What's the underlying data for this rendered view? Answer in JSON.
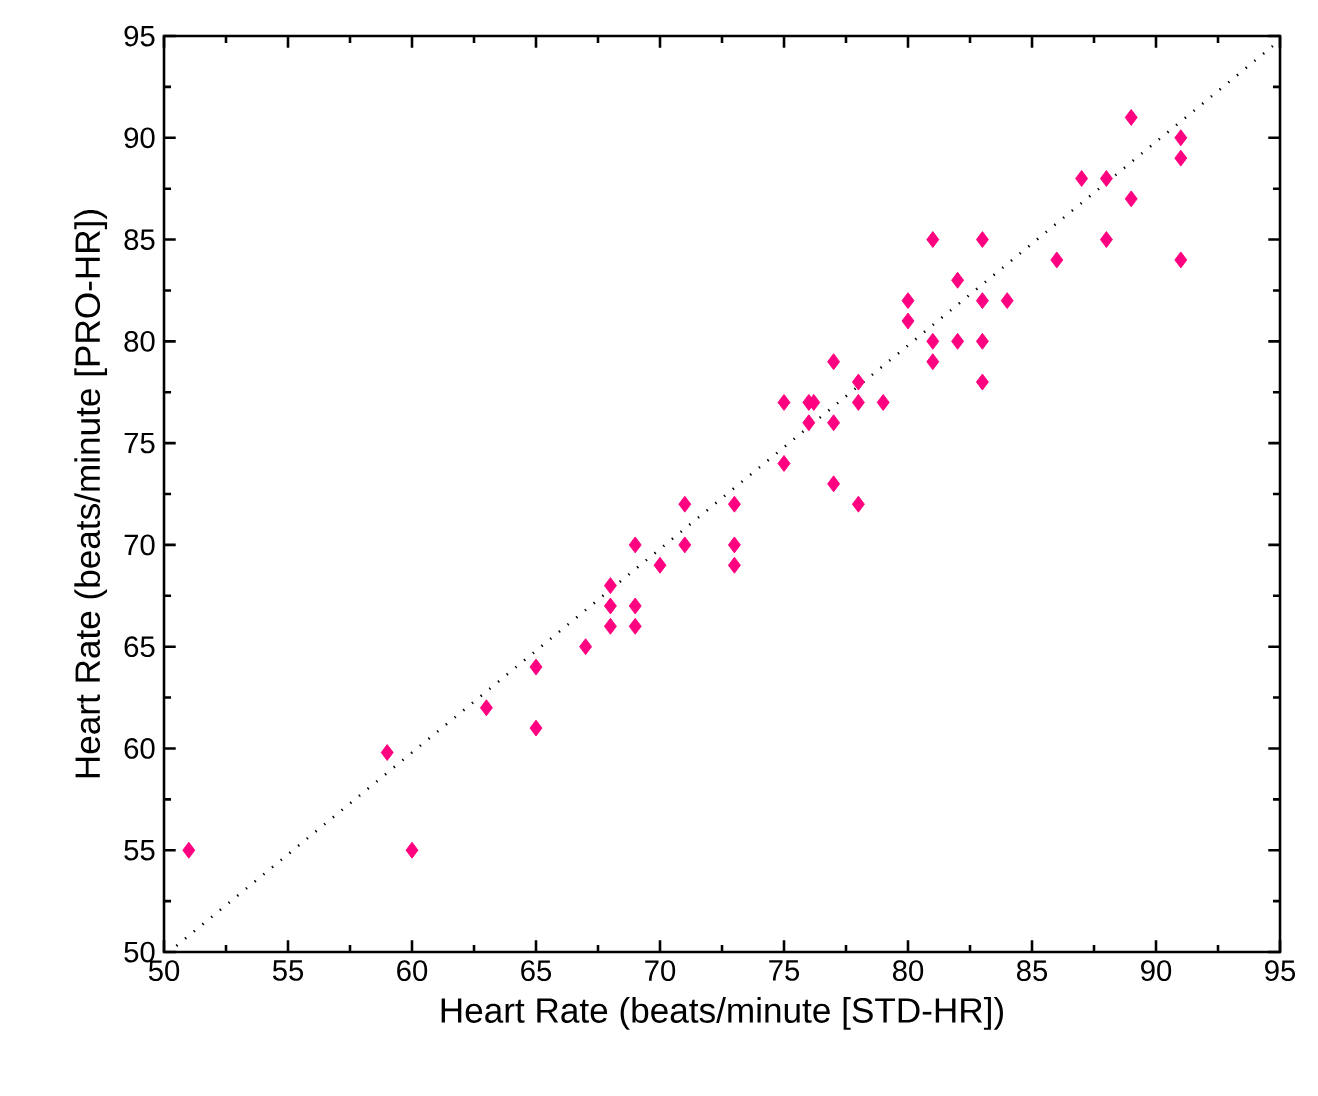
{
  "chart_data": {
    "type": "scatter",
    "xlabel": "Heart Rate (beats/minute [STD-HR])",
    "ylabel": "Heart Rate (beats/minute [PRO-HR])",
    "xlim": [
      50,
      95
    ],
    "ylim": [
      50,
      95
    ],
    "xticks": [
      50,
      55,
      60,
      65,
      70,
      75,
      80,
      85,
      90,
      95
    ],
    "yticks": [
      50,
      55,
      60,
      65,
      70,
      75,
      80,
      85,
      90,
      95
    ],
    "series": [
      {
        "color": "#ff0080",
        "marker": "diamond",
        "x": [
          51,
          59,
          60,
          63,
          65,
          65,
          67,
          68,
          68,
          68,
          69,
          69,
          69,
          70,
          71,
          71,
          73,
          73,
          73,
          75,
          75,
          76,
          76.2,
          76,
          77,
          77,
          77,
          78,
          78,
          78,
          79,
          80,
          80,
          81,
          81,
          81,
          82,
          82,
          83,
          83,
          83,
          83,
          84,
          86,
          87,
          88,
          88,
          89,
          89,
          91,
          91,
          91
        ],
        "values": [
          55,
          59.8,
          55,
          62,
          64,
          61,
          65,
          68,
          67,
          66,
          70,
          67,
          66,
          69,
          72,
          70,
          72,
          70,
          69,
          77,
          74,
          77,
          77,
          76,
          79,
          76,
          73,
          78,
          77,
          72,
          77,
          82,
          81,
          85,
          80,
          79,
          83,
          80,
          85,
          82,
          80,
          78,
          82,
          84,
          88,
          88,
          85,
          91,
          87,
          90,
          89,
          84
        ]
      },
      {
        "type": "line",
        "color": "#000000",
        "line_style": "dotted",
        "marker": "none",
        "x": [
          50.5,
          95
        ],
        "values": [
          50.3,
          94.8
        ]
      }
    ]
  }
}
